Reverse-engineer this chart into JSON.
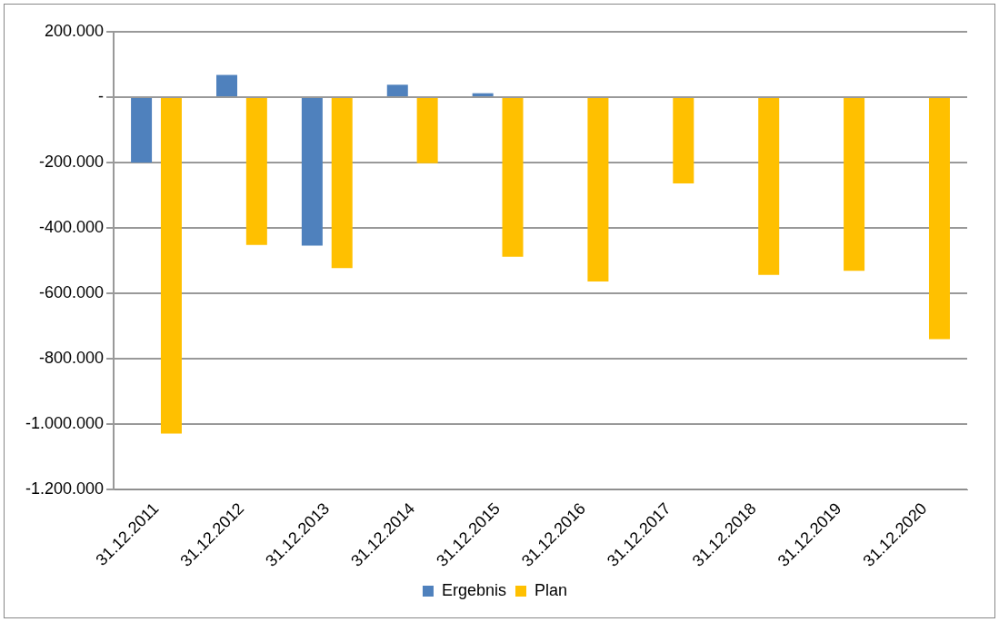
{
  "chart_data": {
    "type": "bar",
    "categories": [
      "31.12.2011",
      "31.12.2012",
      "31.12.2013",
      "31.12.2014",
      "31.12.2015",
      "31.12.2016",
      "31.12.2017",
      "31.12.2018",
      "31.12.2019",
      "31.12.2020"
    ],
    "series": [
      {
        "name": "Ergebnis",
        "color": "#4f81bd",
        "values": [
          -200000,
          68000,
          -454000,
          38000,
          12000,
          null,
          null,
          null,
          null,
          null
        ]
      },
      {
        "name": "Plan",
        "color": "#ffc000",
        "values": [
          -1029000,
          -452000,
          -523000,
          -202000,
          -488000,
          -564000,
          -264000,
          -544000,
          -531000,
          -740000
        ]
      }
    ],
    "ylim": [
      -1200000,
      200000
    ],
    "yticks": [
      {
        "value": 200000,
        "label": "200.000"
      },
      {
        "value": 0,
        "label": "-"
      },
      {
        "value": -200000,
        "label": "-200.000"
      },
      {
        "value": -400000,
        "label": "-400.000"
      },
      {
        "value": -600000,
        "label": "-600.000"
      },
      {
        "value": -800000,
        "label": "-800.000"
      },
      {
        "value": -1000000,
        "label": "-1.000.000"
      },
      {
        "value": -1200000,
        "label": "-1.200.000"
      }
    ],
    "grid": "y",
    "legend": "bottom"
  }
}
